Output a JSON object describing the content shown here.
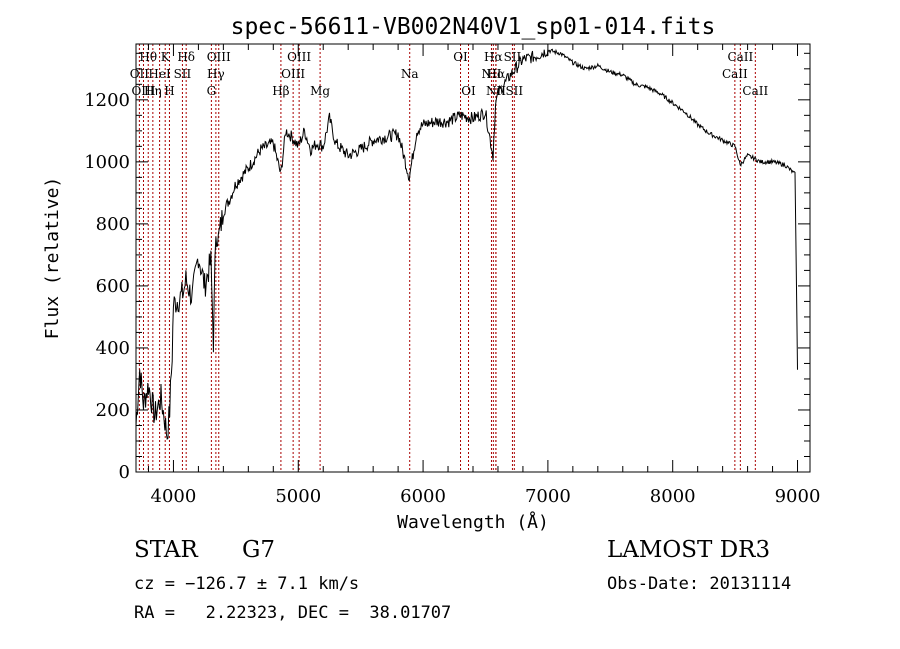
{
  "chart_data": {
    "type": "line",
    "title": "spec-56611-VB002N40V1_sp01-014.fits",
    "xlabel": "Wavelength (Å)",
    "ylabel": "Flux (relative)",
    "xlim": [
      3700,
      9100
    ],
    "ylim": [
      0,
      1380
    ],
    "xticks": [
      4000,
      5000,
      6000,
      7000,
      8000,
      9000
    ],
    "yticks": [
      0,
      200,
      400,
      600,
      800,
      1000,
      1200
    ],
    "grid": false,
    "series": [
      {
        "name": "flux",
        "x": [
          3700,
          3730,
          3760,
          3800,
          3850,
          3900,
          3950,
          3970,
          3990,
          4000,
          4050,
          4080,
          4100,
          4150,
          4200,
          4250,
          4300,
          4320,
          4340,
          4360,
          4400,
          4450,
          4500,
          4600,
          4700,
          4800,
          4860,
          4900,
          4950,
          5000,
          5050,
          5100,
          5150,
          5200,
          5250,
          5300,
          5400,
          5500,
          5600,
          5700,
          5800,
          5890,
          5950,
          6000,
          6100,
          6200,
          6300,
          6400,
          6500,
          6560,
          6580,
          6600,
          6650,
          6700,
          6800,
          6900,
          7000,
          7100,
          7200,
          7300,
          7400,
          7500,
          7600,
          7700,
          7800,
          7900,
          8000,
          8100,
          8200,
          8300,
          8400,
          8500,
          8540,
          8600,
          8660,
          8700,
          8800,
          8900,
          8980,
          9000
        ],
        "y": [
          150,
          330,
          220,
          280,
          180,
          240,
          120,
          200,
          380,
          540,
          560,
          580,
          620,
          560,
          700,
          600,
          680,
          420,
          780,
          750,
          840,
          880,
          930,
          980,
          1040,
          1060,
          960,
          1100,
          1080,
          1050,
          1100,
          1040,
          1060,
          1050,
          1140,
          1060,
          1020,
          1040,
          1070,
          1080,
          1090,
          950,
          1100,
          1120,
          1130,
          1130,
          1150,
          1140,
          1160,
          1020,
          1180,
          1220,
          1250,
          1280,
          1330,
          1340,
          1360,
          1350,
          1320,
          1300,
          1310,
          1290,
          1280,
          1250,
          1240,
          1220,
          1190,
          1160,
          1120,
          1090,
          1070,
          1050,
          990,
          1020,
          1010,
          1000,
          1000,
          990,
          960,
          330
        ]
      }
    ],
    "line_markers": [
      {
        "name": "Hθ",
        "x": 3798,
        "row": 1
      },
      {
        "name": "OII",
        "x": 3727,
        "row": 2
      },
      {
        "name": "OIII",
        "x": 3760,
        "row": 3
      },
      {
        "name": "K",
        "x": 3934,
        "row": 1
      },
      {
        "name": "HeI",
        "x": 3889,
        "row": 2
      },
      {
        "name": "Hη",
        "x": 3835,
        "row": 3
      },
      {
        "name": "Hδ",
        "x": 4102,
        "row": 1
      },
      {
        "name": "SII",
        "x": 4072,
        "row": 2
      },
      {
        "name": "H",
        "x": 3968,
        "row": 3
      },
      {
        "name": "OIII",
        "x": 4363,
        "row": 1
      },
      {
        "name": "Hγ",
        "x": 4340,
        "row": 2
      },
      {
        "name": "G",
        "x": 4304,
        "row": 3
      },
      {
        "name": "OIII",
        "x": 5007,
        "row": 1
      },
      {
        "name": "OIII",
        "x": 4959,
        "row": 2
      },
      {
        "name": "Hβ",
        "x": 4861,
        "row": 3
      },
      {
        "name": "Mg",
        "x": 5175,
        "row": 3
      },
      {
        "name": "Na",
        "x": 5893,
        "row": 2
      },
      {
        "name": "OI",
        "x": 6300,
        "row": 1
      },
      {
        "name": "OI",
        "x": 6364,
        "row": 3
      },
      {
        "name": "Hα",
        "x": 6563,
        "row": 1
      },
      {
        "name": "SII",
        "x": 6716,
        "row": 1
      },
      {
        "name": "NII",
        "x": 6548,
        "row": 2
      },
      {
        "name": "Hα",
        "x": 6583,
        "row": 2
      },
      {
        "name": "NII",
        "x": 6584,
        "row": 3
      },
      {
        "name": "SII",
        "x": 6731,
        "row": 3
      },
      {
        "name": "CaII",
        "x": 8542,
        "row": 1
      },
      {
        "name": "CaII",
        "x": 8498,
        "row": 2
      },
      {
        "name": "CaII",
        "x": 8662,
        "row": 3
      }
    ]
  },
  "info": {
    "object_class": "STAR",
    "subclass": "G7",
    "survey": "LAMOST DR3",
    "redshift_line": "cz = −126.7 ± 7.1 km/s",
    "obs_date": "Obs-Date: 20131114",
    "coords_line": "RA =   2.22323, DEC =  38.01707"
  },
  "colors": {
    "marker": "#aa0000",
    "spectrum": "#000000"
  }
}
